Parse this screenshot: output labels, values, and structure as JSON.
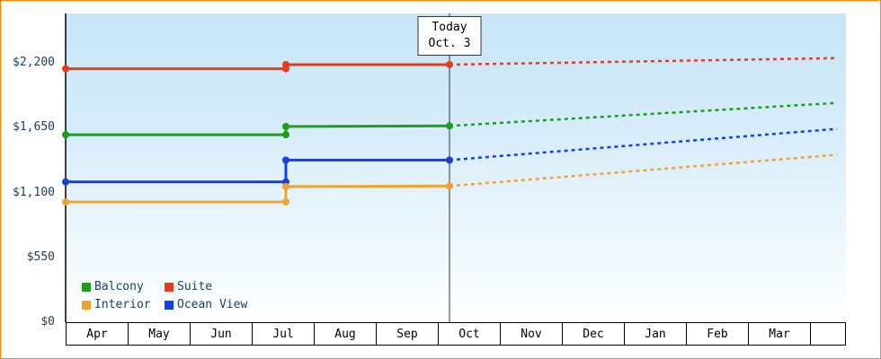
{
  "frame": {
    "border_color": "#ff8a00",
    "plot_background_top": "#c6e5f7",
    "plot_background_bottom": "#ffffff"
  },
  "today_marker": {
    "line1": "Today",
    "line2": "Oct. 3"
  },
  "legend": [
    {
      "label": "Balcony",
      "color": "#1d9e1d"
    },
    {
      "label": "Suite",
      "color": "#e83b1c"
    },
    {
      "label": "Interior",
      "color": "#f0a330"
    },
    {
      "label": "Ocean View",
      "color": "#1540e8"
    }
  ],
  "chart_data": {
    "type": "line",
    "title": "",
    "xlabel": "",
    "ylabel": "",
    "x_axis": {
      "tick_labels": [
        "Apr",
        "May",
        "Jun",
        "Jul",
        "Aug",
        "Sep",
        "Oct",
        "Nov",
        "Dec",
        "Jan",
        "Feb",
        "Mar"
      ],
      "note": "x unit is months from start of Apr; solid = actual prices, dotted = projected prices after today"
    },
    "y_axis": {
      "tick_labels": [
        "$0",
        "$550",
        "$1,100",
        "$1,650",
        "$2,200"
      ],
      "tick_values": [
        0,
        550,
        1100,
        1650,
        2200
      ],
      "range": [
        0,
        2620
      ],
      "grid": false
    },
    "today": {
      "label": [
        "Today",
        "Oct. 3"
      ],
      "month_position": 6.1
    },
    "series": [
      {
        "name": "Suite",
        "color": "#e83b1c",
        "solid": [
          [
            0,
            2150
          ],
          [
            3.5,
            2150
          ],
          [
            3.5,
            2185
          ],
          [
            6.1,
            2185
          ]
        ],
        "projected": [
          [
            6.1,
            2185
          ],
          [
            12.26,
            2240
          ]
        ],
        "markers": [
          [
            0,
            2150
          ],
          [
            3.5,
            2150
          ],
          [
            3.5,
            2185
          ],
          [
            6.1,
            2185
          ]
        ]
      },
      {
        "name": "Balcony",
        "color": "#1d9e1d",
        "solid": [
          [
            0,
            1590
          ],
          [
            3.5,
            1590
          ],
          [
            3.5,
            1660
          ],
          [
            6.1,
            1665
          ]
        ],
        "projected": [
          [
            6.1,
            1665
          ],
          [
            12.26,
            1860
          ]
        ],
        "markers": [
          [
            0,
            1590
          ],
          [
            3.5,
            1590
          ],
          [
            3.5,
            1660
          ],
          [
            6.1,
            1665
          ]
        ]
      },
      {
        "name": "Ocean View",
        "color": "#1540e8",
        "solid": [
          [
            0,
            1190
          ],
          [
            3.5,
            1190
          ],
          [
            3.5,
            1375
          ],
          [
            6.1,
            1375
          ]
        ],
        "projected": [
          [
            6.1,
            1375
          ],
          [
            12.26,
            1640
          ]
        ],
        "markers": [
          [
            0,
            1190
          ],
          [
            3.5,
            1190
          ],
          [
            3.5,
            1375
          ],
          [
            6.1,
            1375
          ]
        ]
      },
      {
        "name": "Interior",
        "color": "#f0a330",
        "solid": [
          [
            0,
            1020
          ],
          [
            3.5,
            1020
          ],
          [
            3.5,
            1150
          ],
          [
            6.1,
            1155
          ]
        ],
        "projected": [
          [
            6.1,
            1155
          ],
          [
            12.26,
            1420
          ]
        ],
        "markers": [
          [
            0,
            1020
          ],
          [
            3.5,
            1020
          ],
          [
            3.5,
            1150
          ],
          [
            6.1,
            1155
          ]
        ]
      }
    ],
    "legend_position": "bottom-left-inside"
  }
}
